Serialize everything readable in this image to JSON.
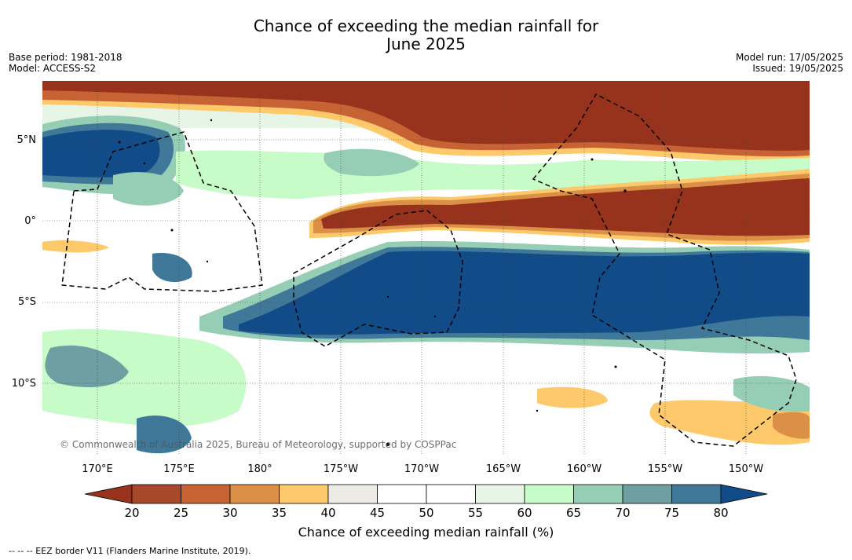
{
  "title_line1": "Chance of exceeding the median rainfall for",
  "title_line2": "June 2025",
  "base_period": "Base period: 1981-2018",
  "model": "Model: ACCESS-S2",
  "model_run": "Model run: 17/05/2025",
  "issued": "Issued: 19/05/2025",
  "lat_labels": [
    "5°N",
    "0°",
    "5°S",
    "10°S"
  ],
  "lon_labels": [
    "170°E",
    "175°E",
    "180°",
    "175°W",
    "170°W",
    "165°W",
    "160°W",
    "155°W",
    "150°W"
  ],
  "copyright": "© Commonwealth of Australia 2025, Bureau of Meteorology, supported by COSPPac",
  "colorbar": {
    "ticks": [
      "20",
      "25",
      "30",
      "35",
      "40",
      "45",
      "50",
      "55",
      "60",
      "65",
      "70",
      "75",
      "80"
    ],
    "colors": [
      "#97321c",
      "#a9472a",
      "#c66233",
      "#dc9047",
      "#fdc96b",
      "#ecebe6",
      "#ffffff",
      "#ffffff",
      "#e6f5e6",
      "#c7fbc8",
      "#96cdb5",
      "#6d9fa3",
      "#3f7898",
      "#114c88"
    ],
    "label": "Chance of exceeding median rainfall (%)"
  },
  "eez_note": "--  --  -- EEZ border V11 (Flanders Marine Institute, 2019)."
}
